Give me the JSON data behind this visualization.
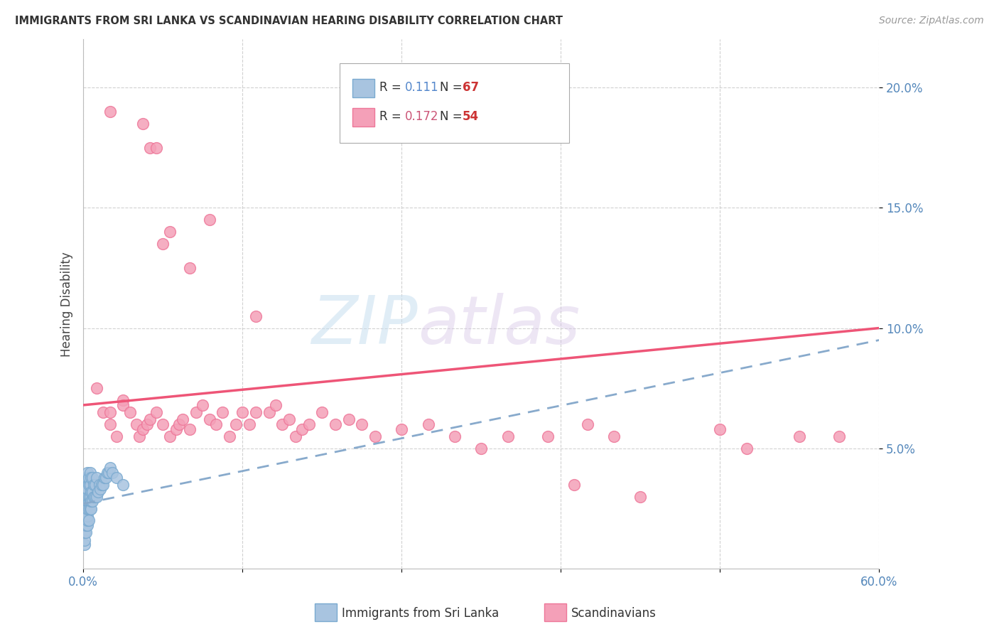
{
  "title": "IMMIGRANTS FROM SRI LANKA VS SCANDINAVIAN HEARING DISABILITY CORRELATION CHART",
  "source": "Source: ZipAtlas.com",
  "ylabel": "Hearing Disability",
  "xmin": 0.0,
  "xmax": 0.6,
  "ymin": 0.0,
  "ymax": 0.22,
  "yticks": [
    0.05,
    0.1,
    0.15,
    0.2
  ],
  "ytick_labels": [
    "5.0%",
    "10.0%",
    "15.0%",
    "20.0%"
  ],
  "xticks": [
    0.0,
    0.12,
    0.24,
    0.36,
    0.48,
    0.6
  ],
  "xtick_labels": [
    "0.0%",
    "",
    "",
    "",
    "",
    "60.0%"
  ],
  "series1_label": "Immigrants from Sri Lanka",
  "series1_R": "0.111",
  "series1_N": "67",
  "series2_label": "Scandinavians",
  "series2_R": "0.172",
  "series2_N": "54",
  "color1": "#a8c4e0",
  "color1_edge": "#7aaad0",
  "color1_line": "#88aacc",
  "color2": "#f4a0b8",
  "color2_edge": "#ee7799",
  "color2_line": "#ee5577",
  "background_color": "#ffffff",
  "watermark_zip": "ZIP",
  "watermark_atlas": "atlas",
  "sri_lanka_x": [
    0.001,
    0.001,
    0.001,
    0.001,
    0.001,
    0.001,
    0.001,
    0.001,
    0.001,
    0.001,
    0.002,
    0.002,
    0.002,
    0.002,
    0.002,
    0.002,
    0.002,
    0.002,
    0.002,
    0.002,
    0.003,
    0.003,
    0.003,
    0.003,
    0.003,
    0.003,
    0.003,
    0.003,
    0.003,
    0.004,
    0.004,
    0.004,
    0.004,
    0.004,
    0.004,
    0.005,
    0.005,
    0.005,
    0.005,
    0.005,
    0.006,
    0.006,
    0.006,
    0.006,
    0.007,
    0.007,
    0.007,
    0.008,
    0.008,
    0.009,
    0.009,
    0.01,
    0.01,
    0.011,
    0.012,
    0.013,
    0.014,
    0.015,
    0.016,
    0.017,
    0.018,
    0.019,
    0.02,
    0.022,
    0.025,
    0.03
  ],
  "sri_lanka_y": [
    0.01,
    0.012,
    0.015,
    0.018,
    0.02,
    0.022,
    0.025,
    0.028,
    0.03,
    0.032,
    0.015,
    0.018,
    0.02,
    0.022,
    0.025,
    0.028,
    0.03,
    0.032,
    0.035,
    0.038,
    0.018,
    0.02,
    0.022,
    0.025,
    0.028,
    0.03,
    0.033,
    0.038,
    0.04,
    0.02,
    0.025,
    0.028,
    0.03,
    0.035,
    0.038,
    0.025,
    0.028,
    0.03,
    0.035,
    0.04,
    0.025,
    0.028,
    0.032,
    0.038,
    0.028,
    0.032,
    0.038,
    0.03,
    0.035,
    0.03,
    0.035,
    0.03,
    0.038,
    0.032,
    0.035,
    0.033,
    0.035,
    0.035,
    0.038,
    0.038,
    0.04,
    0.04,
    0.042,
    0.04,
    0.038,
    0.035
  ],
  "scandinavian_x": [
    0.01,
    0.015,
    0.02,
    0.02,
    0.025,
    0.03,
    0.03,
    0.035,
    0.04,
    0.042,
    0.045,
    0.048,
    0.05,
    0.055,
    0.06,
    0.065,
    0.07,
    0.072,
    0.075,
    0.08,
    0.085,
    0.09,
    0.095,
    0.1,
    0.105,
    0.11,
    0.115,
    0.12,
    0.125,
    0.13,
    0.14,
    0.145,
    0.15,
    0.155,
    0.16,
    0.165,
    0.17,
    0.18,
    0.19,
    0.2,
    0.21,
    0.22,
    0.24,
    0.26,
    0.28,
    0.3,
    0.32,
    0.35,
    0.38,
    0.4,
    0.48,
    0.5,
    0.54,
    0.57
  ],
  "scandinavian_y": [
    0.075,
    0.065,
    0.06,
    0.065,
    0.055,
    0.07,
    0.068,
    0.065,
    0.06,
    0.055,
    0.058,
    0.06,
    0.062,
    0.065,
    0.06,
    0.055,
    0.058,
    0.06,
    0.062,
    0.058,
    0.065,
    0.068,
    0.062,
    0.06,
    0.065,
    0.055,
    0.06,
    0.065,
    0.06,
    0.065,
    0.065,
    0.068,
    0.06,
    0.062,
    0.055,
    0.058,
    0.06,
    0.065,
    0.06,
    0.062,
    0.06,
    0.055,
    0.058,
    0.06,
    0.055,
    0.05,
    0.055,
    0.055,
    0.06,
    0.055,
    0.058,
    0.05,
    0.055,
    0.055
  ],
  "scan_outliers_x": [
    0.02,
    0.045,
    0.05,
    0.055,
    0.06,
    0.065,
    0.08,
    0.095,
    0.13,
    0.37,
    0.42
  ],
  "scan_outliers_y": [
    0.19,
    0.185,
    0.175,
    0.175,
    0.135,
    0.14,
    0.125,
    0.145,
    0.105,
    0.035,
    0.03
  ]
}
